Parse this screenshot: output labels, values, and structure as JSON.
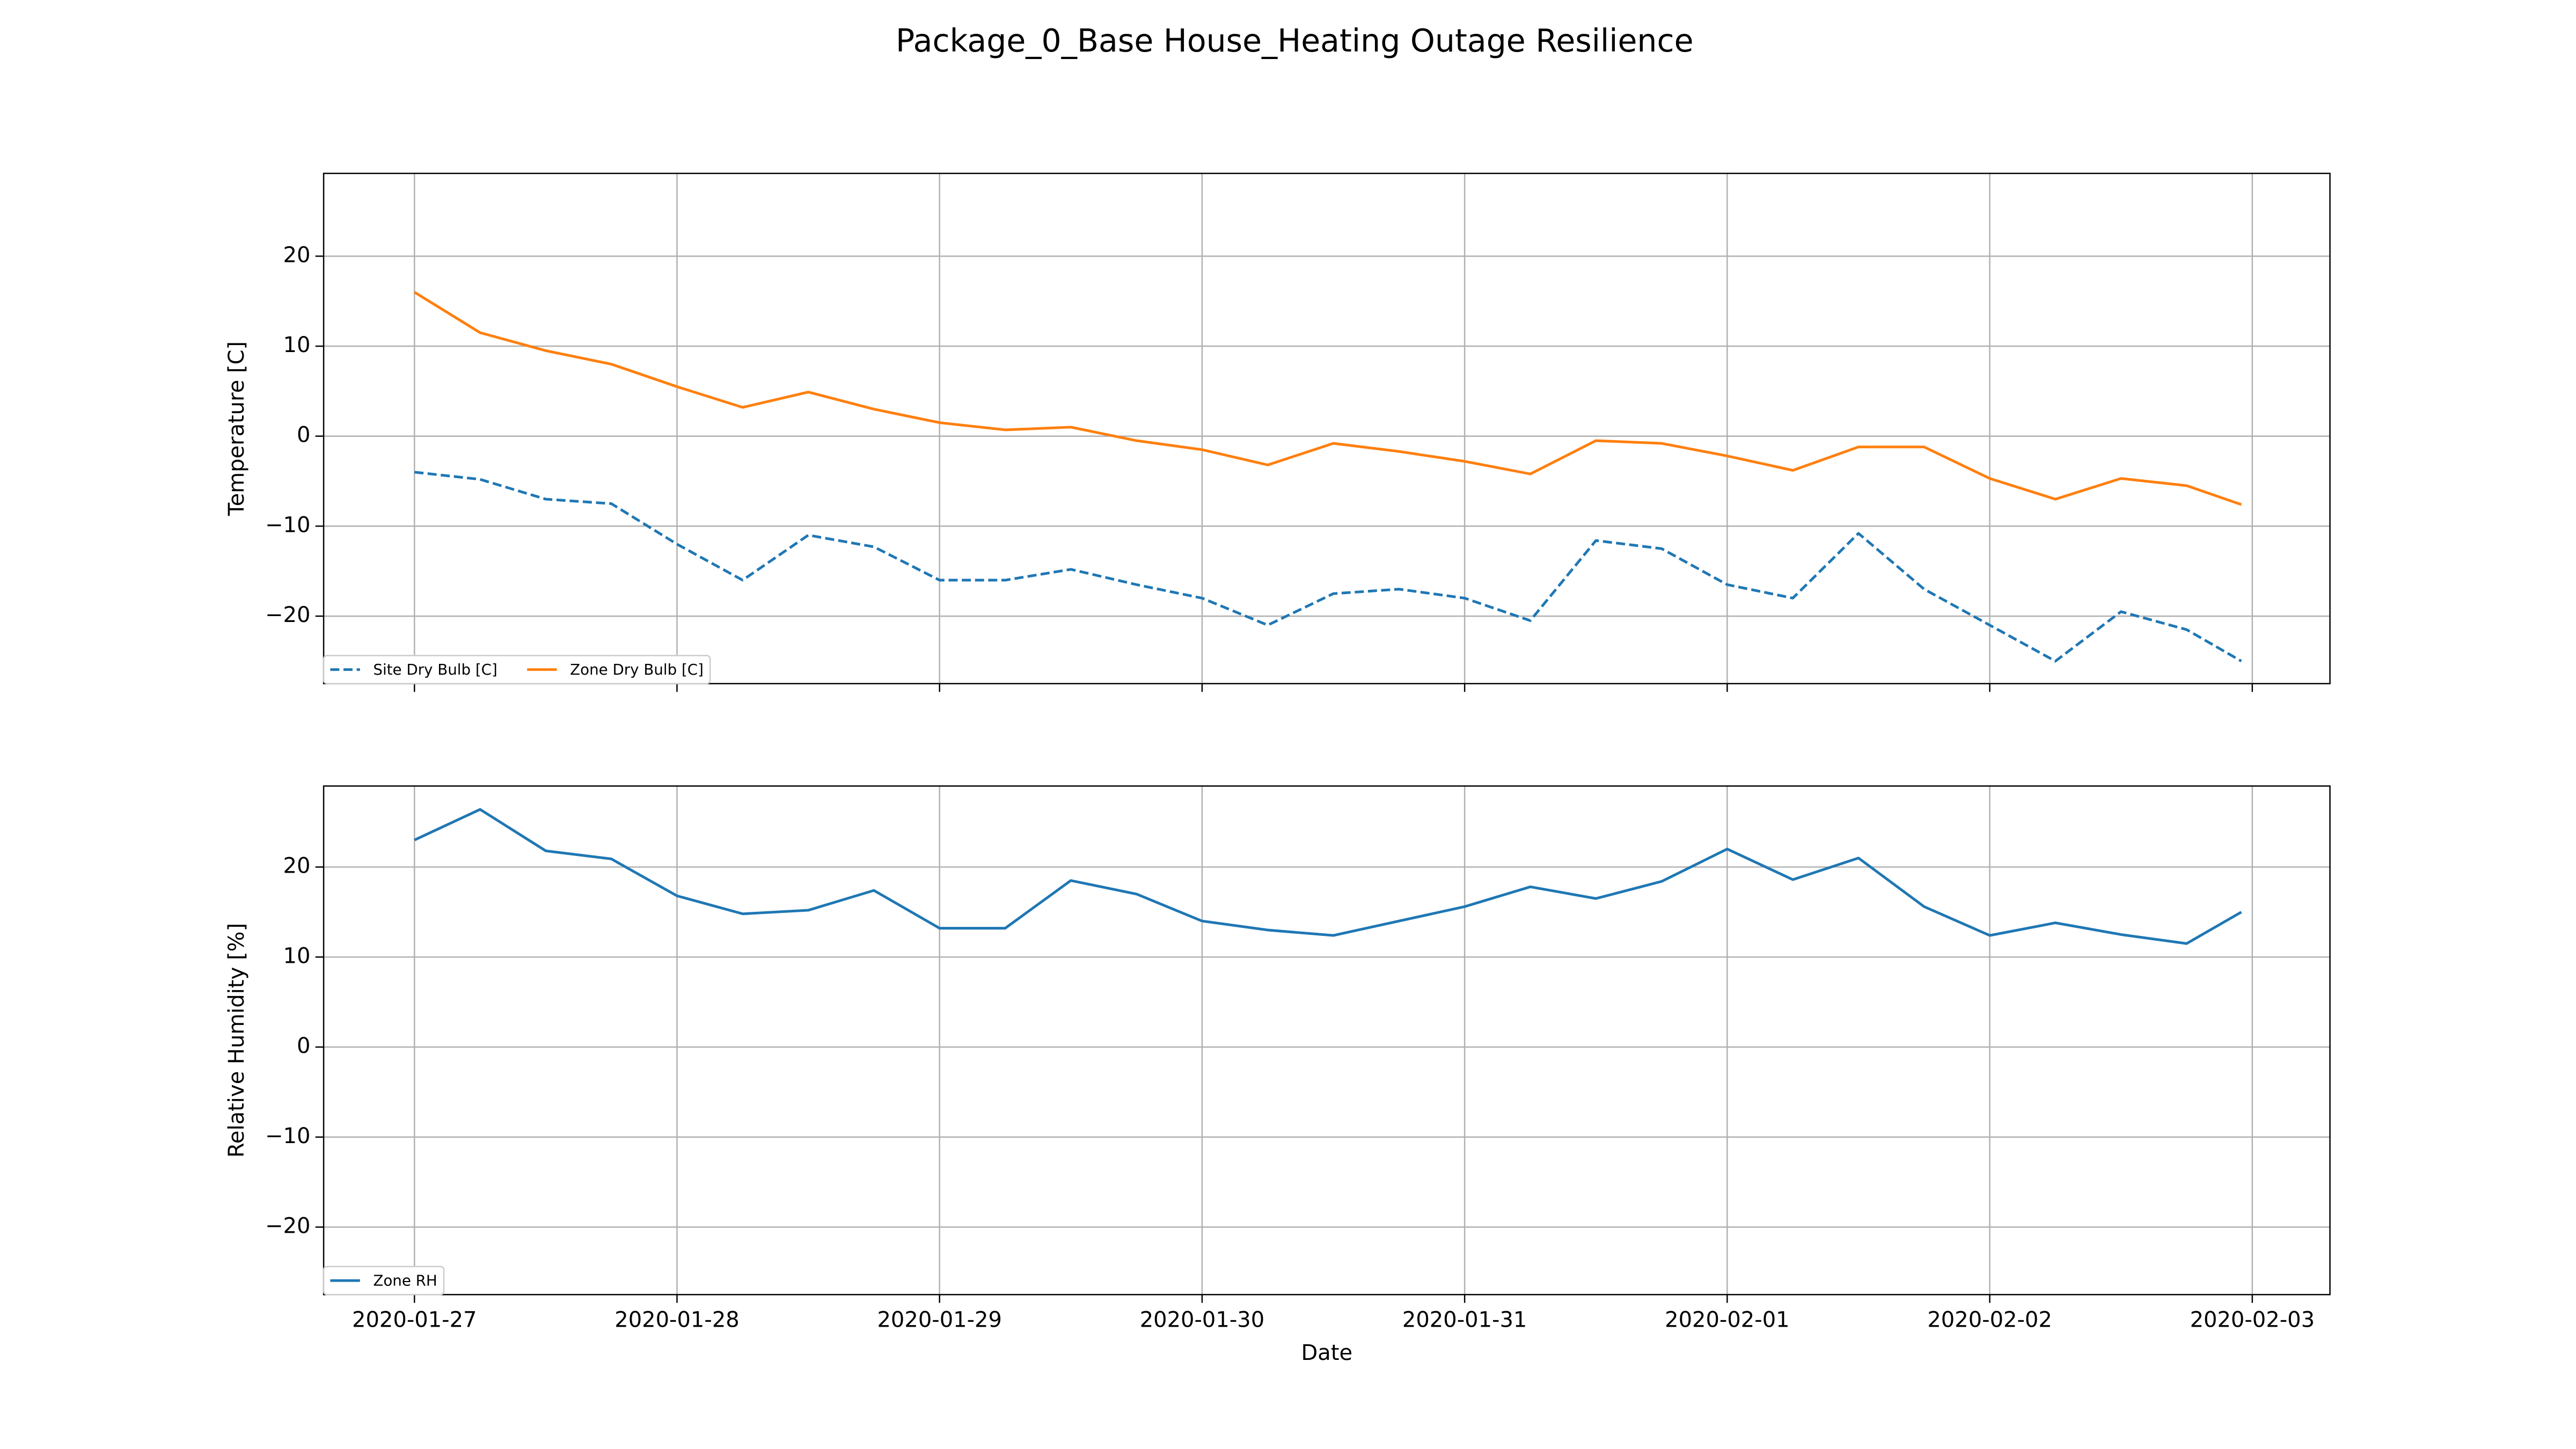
{
  "title": "Package_0_Base House_Heating Outage Resilience",
  "chart_data": [
    {
      "type": "line",
      "ylabel": "Temperature [C]",
      "x": [
        "2020-01-27T00:00",
        "2020-01-27T06:00",
        "2020-01-27T12:00",
        "2020-01-27T18:00",
        "2020-01-28T00:00",
        "2020-01-28T06:00",
        "2020-01-28T12:00",
        "2020-01-28T18:00",
        "2020-01-29T00:00",
        "2020-01-29T06:00",
        "2020-01-29T12:00",
        "2020-01-29T18:00",
        "2020-01-30T00:00",
        "2020-01-30T06:00",
        "2020-01-30T12:00",
        "2020-01-30T18:00",
        "2020-01-31T00:00",
        "2020-01-31T06:00",
        "2020-01-31T12:00",
        "2020-01-31T18:00",
        "2020-02-01T00:00",
        "2020-02-01T06:00",
        "2020-02-01T12:00",
        "2020-02-01T18:00",
        "2020-02-02T00:00",
        "2020-02-02T06:00",
        "2020-02-02T12:00",
        "2020-02-02T18:00",
        "2020-02-02T23:00"
      ],
      "series": [
        {
          "name": "Site Dry Bulb [C]",
          "color": "#1f77b4",
          "linestyle": "dashed",
          "values": [
            -4,
            -4.8,
            -7,
            -7.5,
            -12,
            -16,
            -11,
            -12.3,
            -16,
            -16,
            -14.8,
            -16.5,
            -18,
            -21,
            -17.5,
            -17,
            -18,
            -20.5,
            -11.6,
            -12.5,
            -16.5,
            -18,
            -10.8,
            -17,
            -21,
            -25,
            -19.5,
            -21.5,
            -25
          ]
        },
        {
          "name": "Zone Dry Bulb [C]",
          "color": "#ff7f0e",
          "linestyle": "solid",
          "values": [
            16,
            11.5,
            9.5,
            8,
            5.5,
            3.2,
            4.9,
            3,
            1.5,
            0.7,
            1,
            -0.5,
            -1.5,
            -3.2,
            -0.8,
            -1.7,
            -2.8,
            -4.2,
            -0.5,
            -0.8,
            -2.2,
            -3.8,
            -1.2,
            -1.2,
            -4.7,
            -7,
            -4.7,
            -5.5,
            -7.6
          ]
        }
      ],
      "xlim": [
        "2020-01-26T15:42",
        "2020-02-03T07:06"
      ],
      "xticks": [
        "2020-01-27",
        "2020-01-28",
        "2020-01-29",
        "2020-01-30",
        "2020-01-31",
        "2020-02-01",
        "2020-02-02",
        "2020-02-03"
      ],
      "ylim": [
        -27.5,
        29.2
      ],
      "yticks": [
        {
          "value": -20,
          "label": "−20"
        },
        {
          "value": -10,
          "label": "−10"
        },
        0,
        10,
        20
      ],
      "grid": true,
      "legend": "lower left"
    },
    {
      "type": "line",
      "xlabel": "Date",
      "ylabel": "Relative Humidity [%]",
      "x": [
        "2020-01-27T00:00",
        "2020-01-27T06:00",
        "2020-01-27T12:00",
        "2020-01-27T18:00",
        "2020-01-28T00:00",
        "2020-01-28T06:00",
        "2020-01-28T12:00",
        "2020-01-28T18:00",
        "2020-01-29T00:00",
        "2020-01-29T06:00",
        "2020-01-29T12:00",
        "2020-01-29T18:00",
        "2020-01-30T00:00",
        "2020-01-30T06:00",
        "2020-01-30T12:00",
        "2020-01-30T18:00",
        "2020-01-31T00:00",
        "2020-01-31T06:00",
        "2020-01-31T12:00",
        "2020-01-31T18:00",
        "2020-02-01T00:00",
        "2020-02-01T06:00",
        "2020-02-01T12:00",
        "2020-02-01T18:00",
        "2020-02-02T00:00",
        "2020-02-02T06:00",
        "2020-02-02T12:00",
        "2020-02-02T18:00",
        "2020-02-02T23:00"
      ],
      "series": [
        {
          "name": "Zone RH",
          "color": "#1f77b4",
          "linestyle": "solid",
          "values": [
            23,
            26.4,
            21.8,
            20.9,
            16.8,
            14.8,
            15.2,
            17.4,
            13.2,
            13.2,
            18.5,
            17,
            14,
            13,
            12.4,
            14,
            15.6,
            17.8,
            16.5,
            18.4,
            22,
            18.6,
            21,
            15.6,
            12.4,
            13.8,
            12.5,
            11.5,
            15
          ]
        }
      ],
      "xlim": [
        "2020-01-26T15:42",
        "2020-02-03T07:06"
      ],
      "xticks": [
        "2020-01-27",
        "2020-01-28",
        "2020-01-29",
        "2020-01-30",
        "2020-01-31",
        "2020-02-01",
        "2020-02-02",
        "2020-02-03"
      ],
      "ylim": [
        -27.5,
        29
      ],
      "yticks": [
        {
          "value": -20,
          "label": "−20"
        },
        {
          "value": -10,
          "label": "−10"
        },
        0,
        10,
        20
      ],
      "grid": true,
      "legend": "lower left"
    }
  ]
}
